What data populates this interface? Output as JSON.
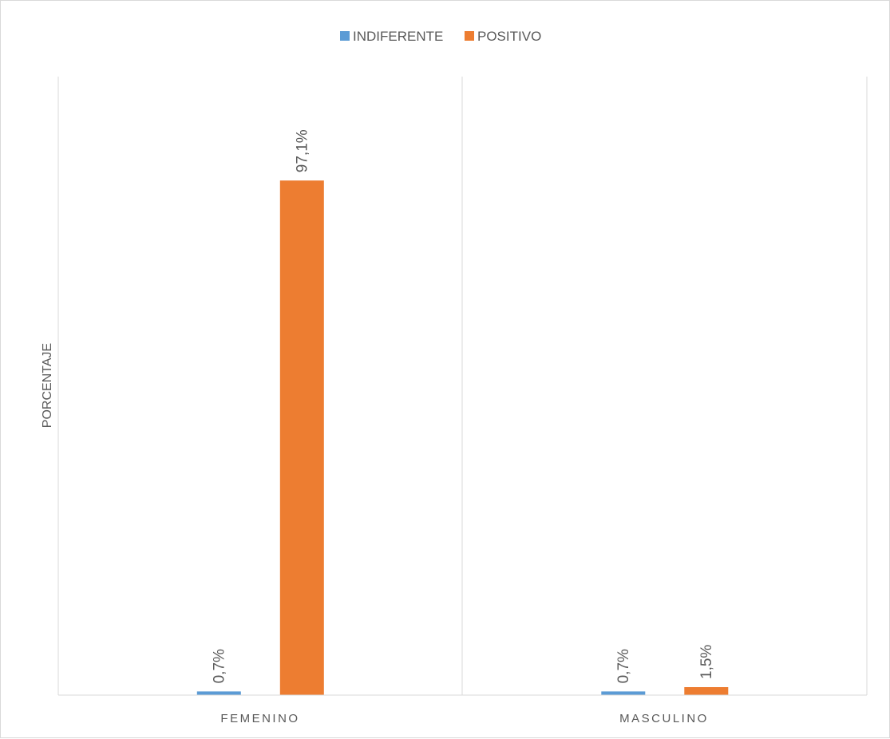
{
  "chart_data": {
    "type": "bar",
    "title": "",
    "xlabel": "",
    "ylabel": "PORCENTAJE",
    "categories": [
      "FEMENINO",
      "MASCULINO"
    ],
    "series": [
      {
        "name": "INDIFERENTE",
        "color": "#5B9BD5",
        "values": [
          0.7,
          0.7
        ],
        "labels": [
          "0,7%",
          "0,7%"
        ]
      },
      {
        "name": "POSITIVO",
        "color": "#ED7D31",
        "values": [
          97.1,
          1.5
        ],
        "labels": [
          "97,1%",
          "1,5%"
        ]
      }
    ],
    "ylim": [
      0,
      100
    ],
    "grid": false,
    "legend_position": "top"
  }
}
